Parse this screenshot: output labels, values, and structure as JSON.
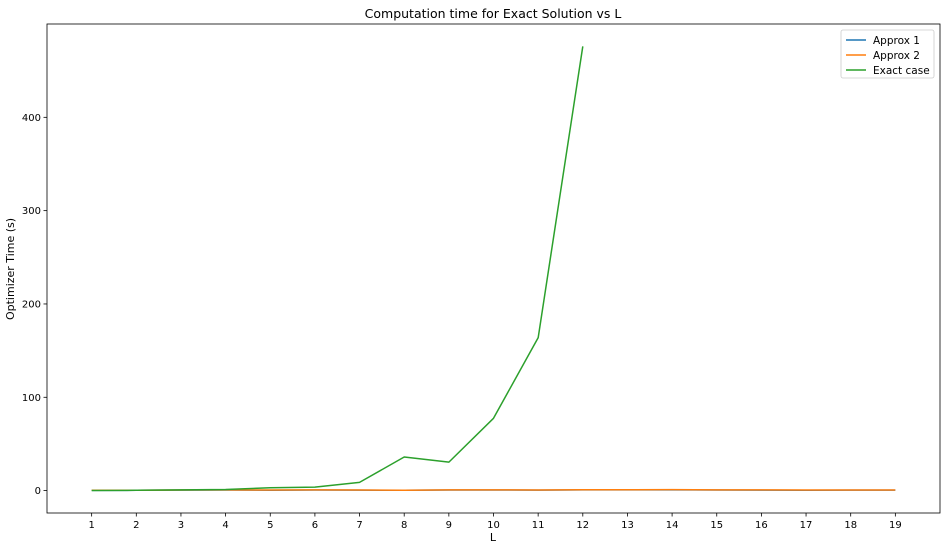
{
  "chart_data": {
    "type": "line",
    "title": "Computation time for Exact Solution vs L",
    "xlabel": "L",
    "ylabel": "Optimizer Time (s)",
    "x": [
      1,
      2,
      3,
      4,
      5,
      6,
      7,
      8,
      9,
      10,
      11,
      12,
      13,
      14,
      15,
      16,
      17,
      18,
      19
    ],
    "xlim": [
      0.0,
      20.0
    ],
    "ylim": [
      -24,
      500
    ],
    "y_ticks": [
      0,
      100,
      200,
      300,
      400
    ],
    "grid": false,
    "legend_position": "top-right",
    "series": [
      {
        "name": "Approx 1",
        "color": "#1f77b4",
        "x": [
          1,
          2,
          3,
          4,
          5,
          6,
          7,
          8,
          9,
          10,
          11,
          12,
          13,
          14,
          15,
          16,
          17,
          18,
          19
        ],
        "values": [
          0.2,
          0.3,
          0.5,
          0.6,
          0.4,
          0.6,
          0.5,
          0.3,
          0.6,
          0.6,
          0.5,
          0.8,
          0.7,
          0.8,
          0.6,
          0.5,
          0.4,
          0.5,
          0.5
        ]
      },
      {
        "name": "Approx 2",
        "color": "#ff7f0e",
        "x": [
          1,
          2,
          3,
          4,
          5,
          6,
          7,
          8,
          9,
          10,
          11,
          12,
          13,
          14,
          15,
          16,
          17,
          18,
          19
        ],
        "values": [
          0.3,
          0.4,
          0.6,
          0.8,
          0.6,
          0.8,
          0.6,
          0.4,
          0.7,
          0.8,
          0.6,
          1.0,
          0.9,
          1.1,
          0.8,
          0.7,
          0.6,
          0.6,
          0.6
        ]
      },
      {
        "name": "Exact case",
        "color": "#2ca02c",
        "x": [
          1,
          2,
          3,
          4,
          5,
          6,
          7,
          8,
          9,
          10,
          11,
          12
        ],
        "values": [
          0.1,
          0.3,
          0.7,
          1.2,
          3.0,
          3.8,
          8.8,
          36.0,
          30.5,
          77.5,
          164.0,
          476.0
        ]
      }
    ]
  }
}
